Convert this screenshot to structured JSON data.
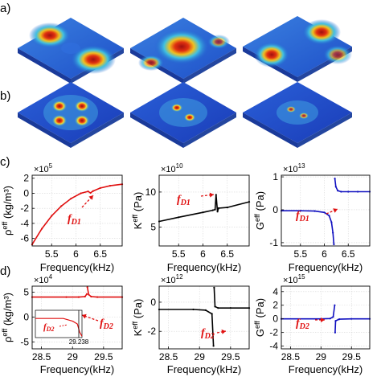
{
  "panels": {
    "a": {
      "label": "a)"
    },
    "b": {
      "label": "b)"
    },
    "c": {
      "label": "c)"
    },
    "d": {
      "label": "d)"
    }
  },
  "annotations": {
    "fd1": "f",
    "fd1_sub": "D1",
    "fd2": "f",
    "fd2_sub": "D2"
  },
  "chart_data": [
    {
      "id": "c1",
      "type": "line",
      "color": "#e01010",
      "ylabel_main": "ρ",
      "ylabel_sup": "eff",
      "ylabel_unit": " (kg/m³)",
      "xlabel": "Frequency(kHz)",
      "multiplier_base": "×10",
      "multiplier_exp": "5",
      "xlim": [
        5.1,
        6.95
      ],
      "ylim": [
        -7,
        2.4
      ],
      "xticks": [
        "5.5",
        "6",
        "6.5"
      ],
      "xtick_values": [
        5.5,
        6.0,
        6.5
      ],
      "yticks": [
        "2",
        "0",
        "-2",
        "-4",
        "-6"
      ],
      "ytick_values": [
        2,
        0,
        -2,
        -4,
        -6
      ],
      "annotation": "fd1",
      "series": [
        {
          "x": [
            5.1,
            5.3,
            5.5,
            5.7,
            5.9,
            6.1,
            6.25,
            6.3,
            6.35,
            6.5,
            6.7,
            6.95
          ],
          "y": [
            -6.8,
            -4.7,
            -3.0,
            -1.7,
            -0.7,
            0.0,
            0.25,
            0.05,
            0.3,
            0.7,
            1.0,
            1.2
          ]
        }
      ]
    },
    {
      "id": "c2",
      "type": "line",
      "color": "#000000",
      "ylabel_main": "K",
      "ylabel_sup": "eff",
      "ylabel_unit": " (Pa)",
      "xlabel": "Frequency(kHz)",
      "multiplier_base": "×10",
      "multiplier_exp": "10",
      "xlim": [
        5.1,
        6.95
      ],
      "ylim": [
        2.3,
        12.4
      ],
      "xticks": [
        "5.5",
        "6",
        "6.5"
      ],
      "xtick_values": [
        5.5,
        6.0,
        6.5
      ],
      "yticks": [
        "10",
        "5"
      ],
      "ytick_values": [
        10,
        5
      ],
      "annotation": "fd1",
      "series": [
        {
          "x": [
            5.1,
            5.5,
            6.0,
            6.2,
            6.25,
            6.27,
            6.3,
            6.32,
            6.5,
            6.95
          ],
          "y": [
            5.8,
            6.4,
            7.1,
            7.4,
            7.5,
            9.6,
            7.2,
            7.7,
            7.8,
            8.6
          ]
        }
      ]
    },
    {
      "id": "c3",
      "type": "line",
      "color": "#1010c0",
      "ylabel_main": "G",
      "ylabel_sup": "eff",
      "ylabel_unit": " (Pa)",
      "xlabel": "Frequency(kHz)",
      "multiplier_base": "×10",
      "multiplier_exp": "13",
      "xlim": [
        5.1,
        6.95
      ],
      "ylim": [
        -1.1,
        1.05
      ],
      "xticks": [
        "5.5",
        "6",
        "6.5"
      ],
      "xtick_values": [
        5.5,
        6.0,
        6.5
      ],
      "yticks": [
        "1",
        "0",
        "-1"
      ],
      "ytick_values": [
        1,
        0,
        -1
      ],
      "annotation": "fd1",
      "series": [
        {
          "x": [
            5.1,
            5.5,
            5.8,
            6.0,
            6.1,
            6.15,
            6.18,
            6.2
          ],
          "y": [
            -0.03,
            -0.03,
            -0.04,
            -0.08,
            -0.18,
            -0.38,
            -0.7,
            -1.05
          ]
        },
        {
          "x": [
            6.22,
            6.24,
            6.28,
            6.35,
            6.5,
            6.7,
            6.95
          ],
          "y": [
            0.95,
            0.7,
            0.58,
            0.55,
            0.55,
            0.55,
            0.55
          ]
        }
      ]
    },
    {
      "id": "d1",
      "type": "line",
      "color": "#e01010",
      "ylabel_main": "ρ",
      "ylabel_sup": "eff",
      "ylabel_unit": " (kg/m³)",
      "xlabel": "Frequency(kHz)",
      "multiplier_base": "×10",
      "multiplier_exp": "4",
      "xlim": [
        28.35,
        29.8
      ],
      "ylim": [
        -6.4,
        6.2
      ],
      "xticks": [
        "28.5",
        "29",
        "29.5"
      ],
      "xtick_values": [
        28.5,
        29.0,
        29.5
      ],
      "yticks": [
        "5",
        "0",
        "-5"
      ],
      "ytick_values": [
        5,
        0,
        -5
      ],
      "annotation": "fd2",
      "series": [
        {
          "x": [
            28.35,
            28.9,
            29.1,
            29.2,
            29.23
          ],
          "y": [
            4.0,
            4.0,
            4.0,
            4.1,
            4.6
          ]
        },
        {
          "x": [
            29.24,
            29.26,
            29.3,
            29.4,
            29.8
          ],
          "y": [
            6.0,
            4.5,
            4.1,
            4.0,
            4.0
          ]
        }
      ],
      "inset": {
        "tick_label": "29.238",
        "series": [
          {
            "x": [
              0.0,
              0.6,
              0.8,
              0.9,
              0.95,
              1.0
            ],
            "y": [
              0.7,
              0.7,
              0.6,
              0.5,
              0.2,
              0.05
            ]
          }
        ]
      }
    },
    {
      "id": "d2",
      "type": "line",
      "color": "#000000",
      "ylabel_main": "K",
      "ylabel_sup": "eff",
      "ylabel_unit": " (Pa)",
      "xlabel": "Frequency(kHz)",
      "multiplier_base": "×10",
      "multiplier_exp": "12",
      "xlim": [
        28.35,
        29.8
      ],
      "ylim": [
        -3.2,
        1.1
      ],
      "xticks": [
        "28.5",
        "29",
        "29.5"
      ],
      "xtick_values": [
        28.5,
        29.0,
        29.5
      ],
      "yticks": [
        "0",
        "-2"
      ],
      "ytick_values": [
        0,
        -2
      ],
      "annotation": "fd2",
      "series": [
        {
          "x": [
            28.35,
            28.9,
            29.1,
            29.2,
            29.225
          ],
          "y": [
            -0.5,
            -0.5,
            -0.55,
            -0.8,
            -3.0
          ]
        },
        {
          "x": [
            29.235,
            29.25,
            29.3,
            29.5,
            29.8
          ],
          "y": [
            1.0,
            -0.3,
            -0.4,
            -0.4,
            -0.4
          ]
        }
      ]
    },
    {
      "id": "d3",
      "type": "line",
      "color": "#1010c0",
      "ylabel_main": "G",
      "ylabel_sup": "eff",
      "ylabel_unit": " (Pa)",
      "xlabel": "Frequency(kHz)",
      "multiplier_base": "×10",
      "multiplier_exp": "15",
      "xlim": [
        28.35,
        29.8
      ],
      "ylim": [
        -4.4,
        4.8
      ],
      "xticks": [
        "28.5",
        "29",
        "29.5"
      ],
      "xtick_values": [
        28.5,
        29.0,
        29.5
      ],
      "yticks": [
        "4",
        "2",
        "0",
        "-2",
        "-4"
      ],
      "ytick_values": [
        4,
        2,
        0,
        -2,
        -4
      ],
      "annotation": "fd2",
      "series": [
        {
          "x": [
            28.35,
            29.0,
            29.15,
            29.2,
            29.225
          ],
          "y": [
            0.0,
            0.0,
            0.05,
            0.3,
            2.0
          ]
        },
        {
          "x": [
            29.232,
            29.24,
            29.3,
            29.5,
            29.8
          ],
          "y": [
            -2.0,
            -0.3,
            -0.05,
            0.0,
            0.0
          ]
        }
      ]
    }
  ]
}
